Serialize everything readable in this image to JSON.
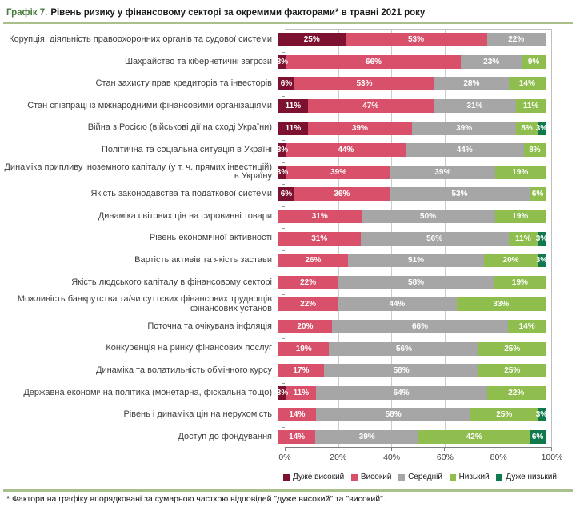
{
  "title": {
    "prefix": "Графік 7.",
    "text": "Рівень ризику у фінансовому секторі за окремими факторами* в травні 2021 року"
  },
  "footnote": "* Фактори на графіку впорядковані за сумарною часткою відповідей \"дуже високий\" та \"високий\".",
  "colors": {
    "title_green": "#4b7b40",
    "rule_green": "#a9c08c",
    "grid": "#cccccc",
    "axis": "#7f7f7f"
  },
  "chart_data": {
    "type": "bar",
    "stacked": true,
    "orientation": "horizontal",
    "title": "Рівень ризику у фінансовому секторі за окремими факторами в травні 2021 року",
    "categories": [
      "Корупція, діяльність правоохоронних органів та судової системи",
      "Шахрайство та кібернетичні загрози",
      "Стан захисту прав кредиторів та інвесторів",
      "Стан співпраці із міжнародними фінансовими організаціями",
      "Війна з Росією (військові дії на сході України)",
      "Політична та соціальна ситуація в Україні",
      "Динаміка припливу іноземного капіталу (у т. ч. прямих інвестицій) в Україну",
      "Якість законодавства та податкової системи",
      "Динаміка світових цін на сировинні товари",
      "Рівень економічної активності",
      "Вартість активів та якість застави",
      "Якість людського капіталу в фінансовому секторі",
      "Можливість банкрутства та/чи суттєвих фінансових труднощів фінансових установ",
      "Поточна та очікувана інфляція",
      "Конкуренція на ринку фінансових послуг",
      "Динаміка та волатильність обмінного курсу",
      "Державна економічна політика (монетарна, фіскальна тощо)",
      "Рівень і динаміка цін на нерухомість",
      "Доступ до фондування"
    ],
    "series": [
      {
        "name": "Дуже високий",
        "color": "#7d1230",
        "values": [
          25,
          3,
          6,
          11,
          11,
          3,
          3,
          6,
          0,
          0,
          0,
          0,
          0,
          0,
          0,
          0,
          3,
          0,
          0
        ]
      },
      {
        "name": "Високий",
        "color": "#d8506a",
        "values": [
          53,
          66,
          53,
          47,
          39,
          44,
          39,
          36,
          31,
          31,
          26,
          22,
          22,
          20,
          19,
          17,
          11,
          14,
          14
        ]
      },
      {
        "name": "Середній",
        "color": "#a6a6a6",
        "values": [
          22,
          23,
          28,
          31,
          39,
          44,
          39,
          53,
          50,
          56,
          51,
          58,
          44,
          66,
          56,
          58,
          64,
          58,
          39
        ]
      },
      {
        "name": "Низький",
        "color": "#8fbe4f",
        "values": [
          0,
          9,
          14,
          11,
          8,
          8,
          19,
          6,
          19,
          11,
          20,
          19,
          33,
          14,
          25,
          25,
          22,
          25,
          42
        ]
      },
      {
        "name": "Дуже низький",
        "color": "#117a4c",
        "values": [
          0,
          0,
          0,
          0,
          3,
          0,
          0,
          0,
          0,
          3,
          3,
          0,
          0,
          0,
          0,
          0,
          0,
          3,
          6
        ]
      }
    ],
    "x_ticks": [
      "0%",
      "20%",
      "40%",
      "60%",
      "80%",
      "100%"
    ],
    "xlim": [
      0,
      100
    ],
    "value_suffix": "%",
    "grid": true,
    "legend_position": "bottom"
  }
}
